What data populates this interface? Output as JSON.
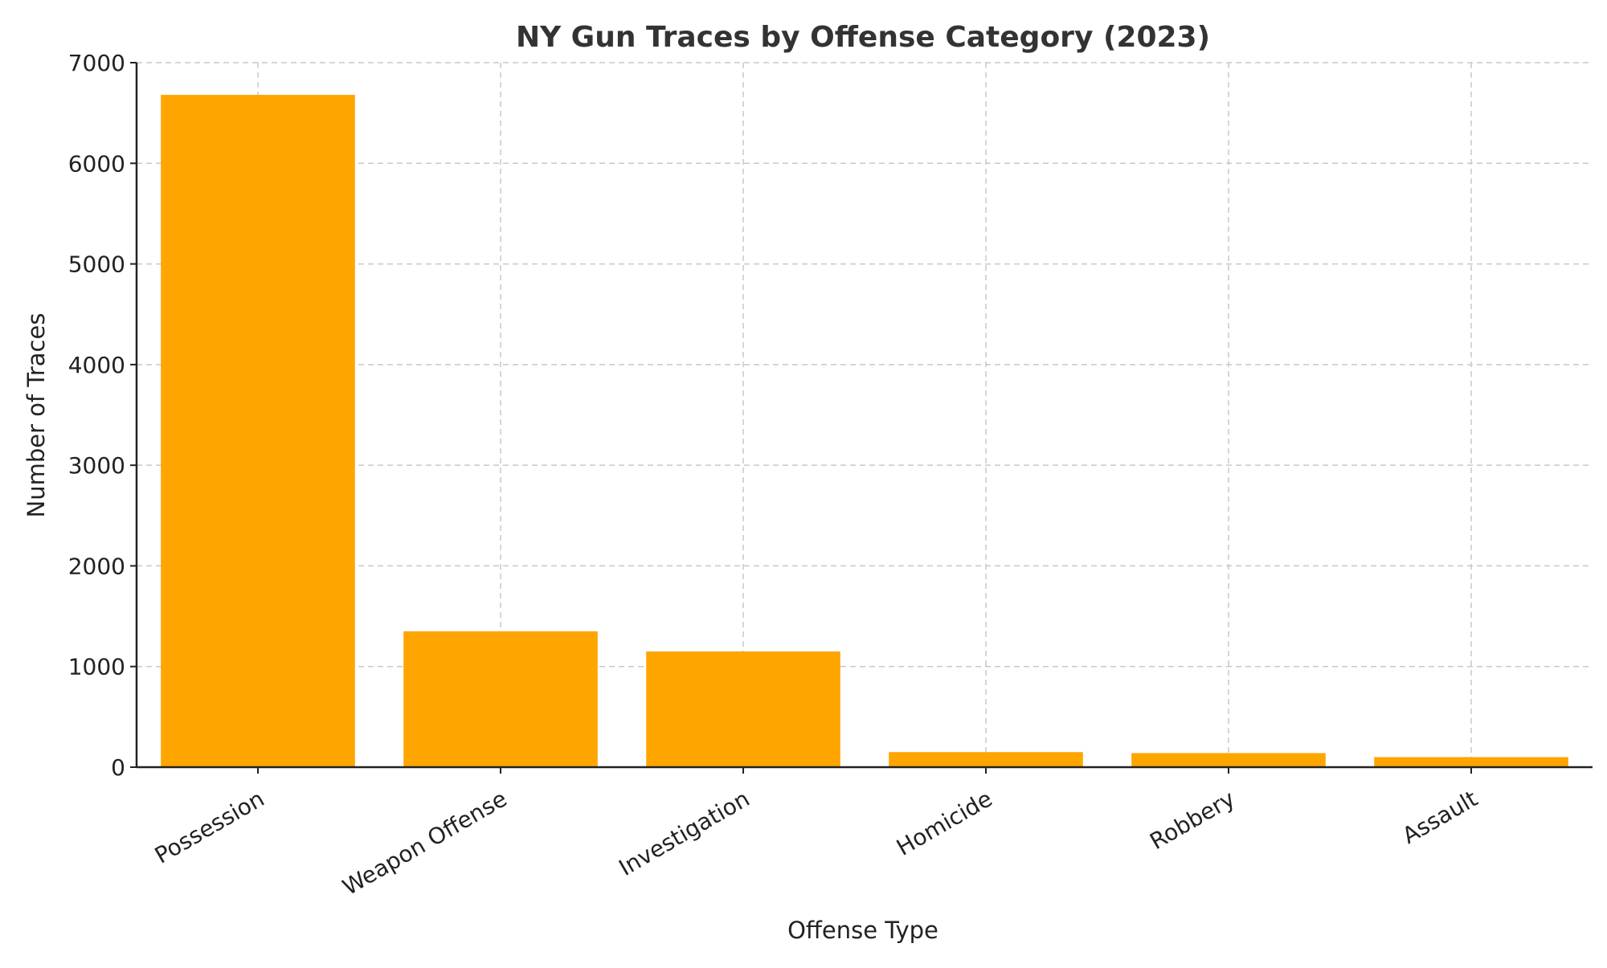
{
  "chart_data": {
    "type": "bar",
    "title": "NY Gun Traces by Offense Category (2023)",
    "xlabel": "Offense Type",
    "ylabel": "Number of Traces",
    "categories": [
      "Possession",
      "Weapon Offense",
      "Investigation",
      "Homicide",
      "Robbery",
      "Assault"
    ],
    "values": [
      6680,
      1350,
      1150,
      150,
      140,
      100
    ],
    "ylim": [
      0,
      7000
    ],
    "yticks": [
      0,
      1000,
      2000,
      3000,
      4000,
      5000,
      6000,
      7000
    ],
    "grid": true,
    "bar_color": "#FFA500",
    "x_tick_rotation_deg": 30
  }
}
